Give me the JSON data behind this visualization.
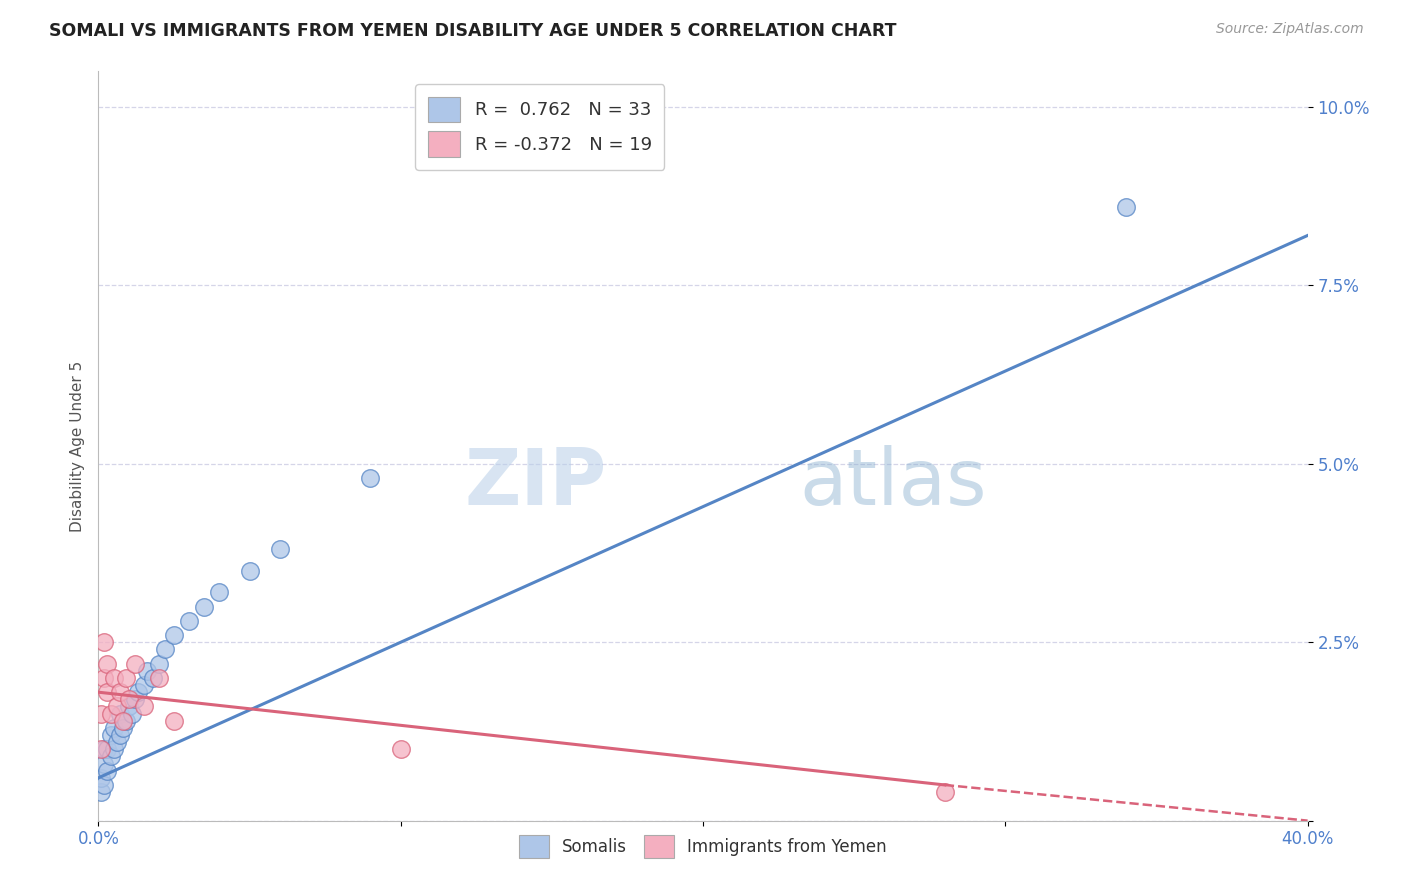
{
  "title": "SOMALI VS IMMIGRANTS FROM YEMEN DISABILITY AGE UNDER 5 CORRELATION CHART",
  "source": "Source: ZipAtlas.com",
  "ylabel": "Disability Age Under 5",
  "xlabel": "",
  "watermark": "ZIPatlas",
  "xlim": [
    0.0,
    0.4
  ],
  "ylim": [
    0.0,
    0.105
  ],
  "xticks": [
    0.0,
    0.1,
    0.2,
    0.3,
    0.4
  ],
  "yticks": [
    0.0,
    0.025,
    0.05,
    0.075,
    0.1
  ],
  "ytick_labels": [
    "",
    "2.5%",
    "5.0%",
    "7.5%",
    "10.0%"
  ],
  "xtick_labels": [
    "0.0%",
    "",
    "",
    "",
    "40.0%"
  ],
  "somali_R": 0.762,
  "somali_N": 33,
  "yemen_R": -0.372,
  "yemen_N": 19,
  "somali_color": "#aec6e8",
  "somali_line_color": "#5585c5",
  "yemen_color": "#f4afc0",
  "yemen_line_color": "#d9637a",
  "somali_x": [
    0.001,
    0.001,
    0.002,
    0.002,
    0.002,
    0.003,
    0.003,
    0.004,
    0.004,
    0.005,
    0.005,
    0.006,
    0.007,
    0.007,
    0.008,
    0.009,
    0.01,
    0.011,
    0.012,
    0.013,
    0.015,
    0.016,
    0.018,
    0.02,
    0.022,
    0.025,
    0.03,
    0.035,
    0.04,
    0.05,
    0.06,
    0.09,
    0.34
  ],
  "somali_y": [
    0.004,
    0.006,
    0.005,
    0.008,
    0.01,
    0.007,
    0.01,
    0.009,
    0.012,
    0.01,
    0.013,
    0.011,
    0.012,
    0.015,
    0.013,
    0.014,
    0.016,
    0.015,
    0.017,
    0.018,
    0.019,
    0.021,
    0.02,
    0.022,
    0.024,
    0.026,
    0.028,
    0.03,
    0.032,
    0.035,
    0.038,
    0.048,
    0.086
  ],
  "yemen_x": [
    0.001,
    0.001,
    0.002,
    0.002,
    0.003,
    0.003,
    0.004,
    0.005,
    0.006,
    0.007,
    0.008,
    0.009,
    0.01,
    0.012,
    0.015,
    0.02,
    0.025,
    0.1,
    0.28
  ],
  "yemen_y": [
    0.01,
    0.015,
    0.02,
    0.025,
    0.018,
    0.022,
    0.015,
    0.02,
    0.016,
    0.018,
    0.014,
    0.02,
    0.017,
    0.022,
    0.016,
    0.02,
    0.014,
    0.01,
    0.004
  ],
  "somali_line_x0": 0.0,
  "somali_line_y0": 0.006,
  "somali_line_x1": 0.4,
  "somali_line_y1": 0.082,
  "yemen_line_x0": 0.0,
  "yemen_line_y0": 0.018,
  "yemen_line_x1_solid": 0.28,
  "yemen_line_y1_solid": 0.005,
  "yemen_line_x1_dash": 0.4,
  "yemen_line_y1_dash": 0.0,
  "background_color": "#ffffff",
  "grid_color": "#d5d5e8"
}
